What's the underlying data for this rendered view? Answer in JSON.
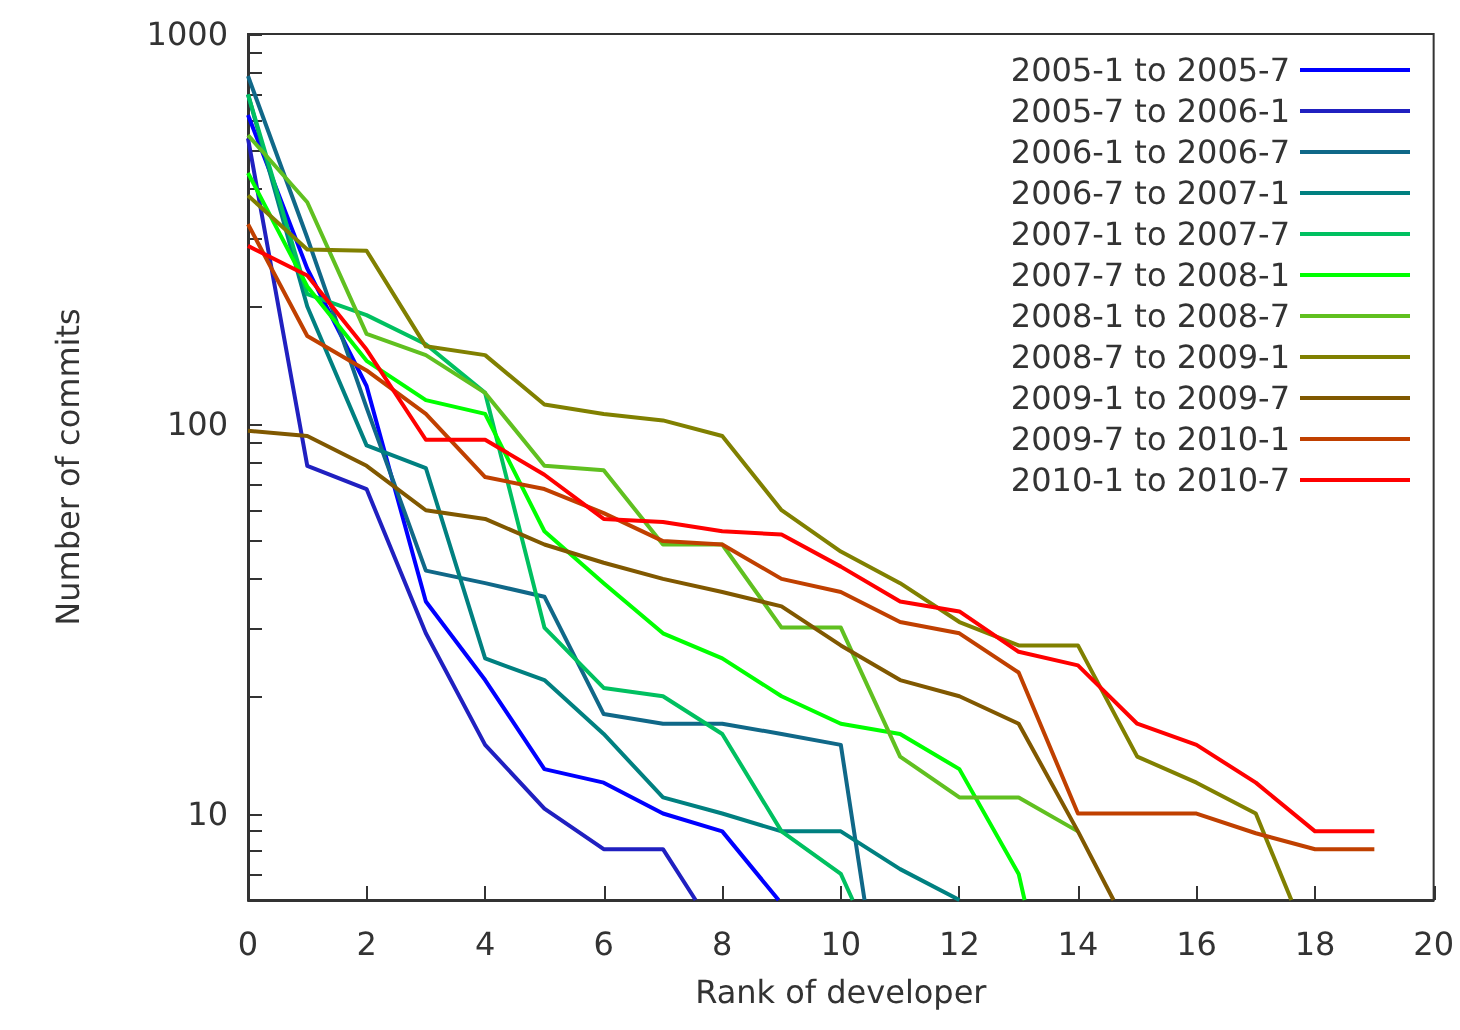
{
  "chart_data": {
    "type": "line",
    "xlabel": "Rank of developer",
    "ylabel": "Number of commits",
    "log": "y",
    "grid": false,
    "legend": "top right",
    "marker": "none",
    "line_style": "solid",
    "xlim": [
      0,
      20
    ],
    "xticks": [
      0,
      2,
      4,
      6,
      8,
      10,
      12,
      14,
      16,
      18,
      20
    ],
    "ylim": [
      6,
      1000
    ],
    "yticks": [
      {
        "value": 6,
        "label": null
      },
      {
        "value": 7,
        "label": null
      },
      {
        "value": 8,
        "label": null
      },
      {
        "value": 9,
        "label": null
      },
      10,
      {
        "value": 20,
        "label": null
      },
      {
        "value": 30,
        "label": null
      },
      {
        "value": 40,
        "label": null
      },
      {
        "value": 50,
        "label": null
      },
      {
        "value": 60,
        "label": null
      },
      {
        "value": 70,
        "label": null
      },
      {
        "value": 80,
        "label": null
      },
      {
        "value": 90,
        "label": null
      },
      100,
      {
        "value": 200,
        "label": null
      },
      {
        "value": 300,
        "label": null
      },
      {
        "value": 400,
        "label": null
      },
      {
        "value": 500,
        "label": null
      },
      {
        "value": 600,
        "label": null
      },
      {
        "value": 700,
        "label": null
      },
      {
        "value": 800,
        "label": null
      },
      {
        "value": 900,
        "label": null
      },
      1000
    ],
    "series": [
      {
        "name": "2005-1 to 2005-7",
        "color": "#0000ff",
        "x": [
          0,
          1,
          2,
          3,
          4,
          5,
          6,
          7,
          8,
          8.95
        ],
        "values": [
          620,
          250,
          125,
          35,
          22,
          13,
          12,
          10,
          9,
          6
        ]
      },
      {
        "name": "2005-7 to 2006-1",
        "color": "#2020c0",
        "x": [
          0,
          1,
          2,
          3,
          4,
          5,
          6,
          7,
          7.55
        ],
        "values": [
          540,
          78,
          68,
          29,
          15,
          10.3,
          8.1,
          8.1,
          6
        ]
      },
      {
        "name": "2006-1 to 2006-7",
        "color": "#106888",
        "x": [
          0,
          1,
          2,
          3,
          4,
          5,
          6,
          7,
          8,
          9,
          10,
          10.4
        ],
        "values": [
          780,
          300,
          110,
          42,
          39,
          36,
          18,
          17,
          17,
          16,
          15,
          6
        ]
      },
      {
        "name": "2006-7 to 2007-1",
        "color": "#008080",
        "x": [
          0,
          1,
          2,
          3,
          4,
          5,
          6,
          7,
          8,
          9,
          10,
          11,
          12
        ],
        "values": [
          700,
          200,
          88,
          77,
          25,
          22,
          16,
          11,
          10,
          9,
          9,
          7.2,
          6
        ]
      },
      {
        "name": "2007-1 to 2007-7",
        "color": "#00c060",
        "x": [
          0,
          1,
          2,
          3,
          4,
          5,
          6,
          7,
          8,
          9,
          10,
          10.2
        ],
        "values": [
          700,
          215,
          190,
          160,
          120,
          30,
          21,
          20,
          16,
          9,
          7,
          6
        ]
      },
      {
        "name": "2007-7 to 2008-1",
        "color": "#00ff00",
        "x": [
          0,
          1,
          2,
          3,
          4,
          5,
          6,
          7,
          8,
          9,
          10,
          11,
          12,
          13,
          13.1
        ],
        "values": [
          440,
          225,
          145,
          115,
          106,
          53,
          39,
          29,
          25,
          20,
          17,
          16,
          13,
          7,
          6
        ]
      },
      {
        "name": "2008-1 to 2008-7",
        "color": "#60c020",
        "x": [
          0,
          1,
          2,
          3,
          4,
          5,
          6,
          7,
          8,
          9,
          10,
          11,
          12,
          13,
          14
        ],
        "values": [
          550,
          370,
          170,
          150,
          120,
          78,
          76,
          49,
          49,
          30,
          30,
          14,
          11,
          11,
          9
        ]
      },
      {
        "name": "2008-7 to 2009-1",
        "color": "#808000",
        "x": [
          0,
          1,
          2,
          3,
          4,
          5,
          6,
          7,
          8,
          9,
          10,
          11,
          12,
          13,
          14,
          15,
          16,
          17,
          17.6
        ],
        "values": [
          385,
          280,
          278,
          158,
          150,
          112,
          106,
          102,
          93,
          60,
          47,
          39,
          31,
          27,
          27,
          14,
          12,
          10,
          6
        ]
      },
      {
        "name": "2009-1 to 2009-7",
        "color": "#805800",
        "x": [
          0,
          1,
          2,
          3,
          4,
          5,
          6,
          7,
          8,
          9,
          10,
          11,
          12,
          13,
          14,
          14.6
        ],
        "values": [
          96,
          93,
          78,
          60,
          57,
          49,
          44,
          40,
          37,
          34,
          27,
          22,
          20,
          17,
          9,
          6
        ]
      },
      {
        "name": "2009-7 to 2010-1",
        "color": "#c04000",
        "x": [
          0,
          1,
          2,
          3,
          4,
          5,
          6,
          7,
          8,
          9,
          10,
          11,
          12,
          13,
          14,
          15,
          16,
          17,
          18,
          19
        ],
        "values": [
          325,
          168,
          137,
          106,
          73,
          68,
          59,
          50,
          49,
          40,
          37,
          31,
          29,
          23,
          10,
          10,
          10,
          8.9,
          8.1,
          8.1
        ]
      },
      {
        "name": "2010-1 to 2010-7",
        "color": "#ff0000",
        "x": [
          0,
          1,
          2,
          3,
          4,
          5,
          6,
          7,
          8,
          9,
          10,
          11,
          12,
          13,
          14,
          15,
          16,
          17,
          18,
          19
        ],
        "values": [
          286,
          240,
          155,
          91,
          91,
          74,
          57,
          56,
          53,
          52,
          43,
          35,
          33,
          26,
          24,
          17,
          15,
          12,
          9,
          9
        ]
      }
    ]
  }
}
